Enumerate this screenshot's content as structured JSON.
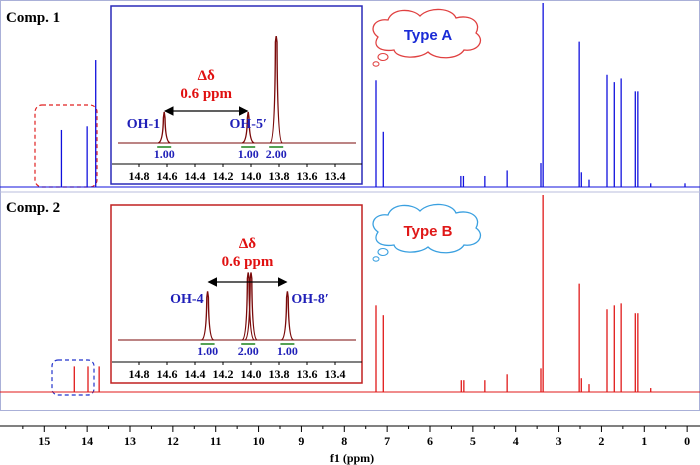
{
  "chart_data": {
    "type": "line",
    "title": "",
    "xlabel": "f1 (ppm)",
    "xlim": [
      15.8,
      -0.3
    ],
    "x_ticks": [
      15,
      14,
      13,
      12,
      11,
      10,
      9,
      8,
      7,
      6,
      5,
      4,
      3,
      2,
      1,
      0
    ],
    "colors": {
      "comp1": "#1010dd",
      "comp2": "#e01818",
      "inset_peak": "#7a0a0a",
      "label_blue": "#1f1fb8",
      "label_red": "#e01010",
      "integral": "#2a8a2a"
    },
    "series": [
      {
        "name": "Comp. 1",
        "label": "Comp. 1",
        "type_label": "Type A",
        "peaks": [
          {
            "ppm": 14.6,
            "h": 0.31
          },
          {
            "ppm": 14.0,
            "h": 0.33
          },
          {
            "ppm": 13.8,
            "h": 0.69
          },
          {
            "ppm": 7.26,
            "h": 0.58
          },
          {
            "ppm": 7.09,
            "h": 0.3
          },
          {
            "ppm": 5.28,
            "h": 0.06
          },
          {
            "ppm": 5.22,
            "h": 0.06
          },
          {
            "ppm": 4.72,
            "h": 0.06
          },
          {
            "ppm": 4.2,
            "h": 0.09
          },
          {
            "ppm": 3.41,
            "h": 0.13
          },
          {
            "ppm": 3.36,
            "h": 1.0
          },
          {
            "ppm": 2.52,
            "h": 0.79
          },
          {
            "ppm": 2.47,
            "h": 0.08
          },
          {
            "ppm": 2.29,
            "h": 0.04
          },
          {
            "ppm": 1.87,
            "h": 0.61
          },
          {
            "ppm": 1.7,
            "h": 0.57
          },
          {
            "ppm": 1.54,
            "h": 0.59
          },
          {
            "ppm": 1.21,
            "h": 0.52
          },
          {
            "ppm": 1.15,
            "h": 0.52
          },
          {
            "ppm": 0.85,
            "h": 0.02
          },
          {
            "ppm": 0.05,
            "h": 0.02
          }
        ],
        "inset": {
          "xlim": [
            14.95,
            13.25
          ],
          "ticks": [
            14.8,
            14.6,
            14.4,
            14.2,
            14.0,
            13.8,
            13.6,
            13.4
          ],
          "peaks": [
            {
              "ppm": 14.62,
              "h": 0.27,
              "label": "OH-1",
              "integral": "1.00"
            },
            {
              "ppm": 14.02,
              "h": 0.27,
              "label": "OH-5′",
              "integral": "1.00"
            },
            {
              "ppm": 13.82,
              "h": 0.93,
              "label": "",
              "integral": "2.00"
            }
          ],
          "delta_label": "Δδ",
          "delta_value": "0.6 ppm"
        }
      },
      {
        "name": "Comp. 2",
        "label": "Comp. 2",
        "type_label": "Type B",
        "peaks": [
          {
            "ppm": 14.3,
            "h": 0.13
          },
          {
            "ppm": 13.98,
            "h": 0.13
          },
          {
            "ppm": 13.72,
            "h": 0.13
          },
          {
            "ppm": 7.26,
            "h": 0.44
          },
          {
            "ppm": 7.09,
            "h": 0.39
          },
          {
            "ppm": 5.27,
            "h": 0.06
          },
          {
            "ppm": 5.21,
            "h": 0.06
          },
          {
            "ppm": 4.72,
            "h": 0.06
          },
          {
            "ppm": 4.2,
            "h": 0.09
          },
          {
            "ppm": 3.41,
            "h": 0.12
          },
          {
            "ppm": 3.36,
            "h": 1.0
          },
          {
            "ppm": 2.52,
            "h": 0.55
          },
          {
            "ppm": 2.47,
            "h": 0.07
          },
          {
            "ppm": 2.29,
            "h": 0.04
          },
          {
            "ppm": 1.87,
            "h": 0.42
          },
          {
            "ppm": 1.7,
            "h": 0.44
          },
          {
            "ppm": 1.54,
            "h": 0.45
          },
          {
            "ppm": 1.21,
            "h": 0.4
          },
          {
            "ppm": 1.15,
            "h": 0.4
          },
          {
            "ppm": 0.85,
            "h": 0.02
          }
        ],
        "inset": {
          "xlim": [
            14.95,
            13.25
          ],
          "ticks": [
            14.8,
            14.6,
            14.4,
            14.2,
            14.0,
            13.8,
            13.6,
            13.4
          ],
          "peaks": [
            {
              "ppm": 14.31,
              "h": 0.36,
              "label": "OH-4",
              "integral": "1.00"
            },
            {
              "ppm": 14.02,
              "h": 0.5,
              "label": "",
              "integral": "2.00"
            },
            {
              "ppm": 14.0,
              "h": 0.5,
              "label": "",
              "integral": ""
            },
            {
              "ppm": 13.74,
              "h": 0.36,
              "label": "OH-8′",
              "integral": "1.00"
            }
          ],
          "delta_label": "Δδ",
          "delta_value": "0.6 ppm"
        }
      }
    ]
  }
}
